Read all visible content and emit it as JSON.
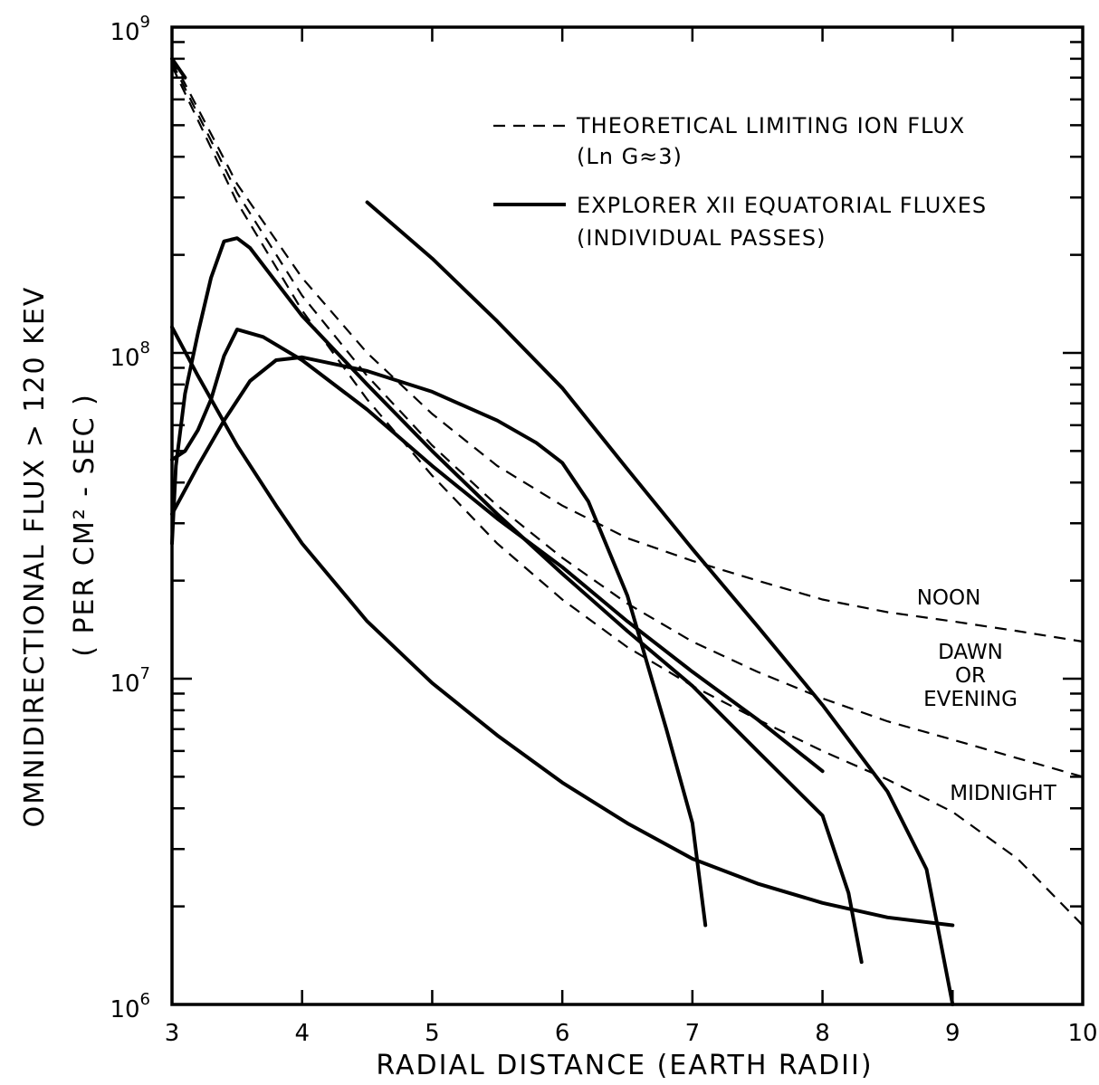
{
  "chart_data": {
    "type": "line",
    "title": "",
    "xlabel": "RADIAL DISTANCE (EARTH RADII)",
    "ylabel": "OMNIDIRECTIONAL FLUX > 120 KEV",
    "ylabel2": "( PER CM² - SEC )",
    "xlim": [
      3,
      10
    ],
    "ylim": [
      1000000,
      1000000000
    ],
    "yscale": "log",
    "grid": false,
    "legend_position": "top-right",
    "x_ticks": [
      "3",
      "4",
      "5",
      "6",
      "7",
      "8",
      "9",
      "10"
    ],
    "y_ticks": [
      {
        "value": 1000000,
        "base": "10",
        "exp": "6"
      },
      {
        "value": 10000000,
        "base": "10",
        "exp": "7"
      },
      {
        "value": 100000000,
        "base": "10",
        "exp": "8"
      },
      {
        "value": 1000000000,
        "base": "10",
        "exp": "9"
      }
    ],
    "legend": [
      {
        "style": "dashed",
        "line1": "THEORETICAL LIMITING ION FLUX",
        "line2": "(Ln G≈3)"
      },
      {
        "style": "solid",
        "line1": "EXPLORER XII EQUATORIAL FLUXES",
        "line2": "(INDIVIDUAL PASSES)"
      }
    ],
    "theoretical_series": [
      {
        "name": "NOON",
        "label_lines": [
          "NOON"
        ],
        "points": [
          [
            3.0,
            800000000
          ],
          [
            3.5,
            330000000
          ],
          [
            4.0,
            170000000
          ],
          [
            4.5,
            100000000
          ],
          [
            5.0,
            65000000
          ],
          [
            5.5,
            45000000
          ],
          [
            6.0,
            34000000
          ],
          [
            6.5,
            27000000
          ],
          [
            7.0,
            23000000
          ],
          [
            7.5,
            20000000
          ],
          [
            8.0,
            17500000
          ],
          [
            8.5,
            16000000
          ],
          [
            9.0,
            15000000
          ],
          [
            9.5,
            14000000
          ],
          [
            10.0,
            13000000
          ]
        ]
      },
      {
        "name": "DAWN OR EVENING",
        "label_lines": [
          "DAWN",
          "OR",
          "EVENING"
        ],
        "points": [
          [
            3.0,
            780000000
          ],
          [
            3.5,
            310000000
          ],
          [
            4.0,
            150000000
          ],
          [
            4.5,
            85000000
          ],
          [
            5.0,
            52000000
          ],
          [
            5.5,
            34000000
          ],
          [
            6.0,
            23500000
          ],
          [
            6.5,
            17000000
          ],
          [
            7.0,
            13000000
          ],
          [
            7.5,
            10500000
          ],
          [
            8.0,
            8700000
          ],
          [
            8.5,
            7400000
          ],
          [
            9.0,
            6500000
          ],
          [
            9.5,
            5700000
          ],
          [
            10.0,
            5000000
          ]
        ]
      },
      {
        "name": "MIDNIGHT",
        "label_lines": [
          "MIDNIGHT"
        ],
        "points": [
          [
            3.0,
            760000000
          ],
          [
            3.5,
            290000000
          ],
          [
            4.0,
            135000000
          ],
          [
            4.5,
            72000000
          ],
          [
            5.0,
            42000000
          ],
          [
            5.5,
            26000000
          ],
          [
            6.0,
            17500000
          ],
          [
            6.5,
            12500000
          ],
          [
            7.0,
            9500000
          ],
          [
            7.5,
            7500000
          ],
          [
            8.0,
            6000000
          ],
          [
            8.5,
            4900000
          ],
          [
            9.0,
            3900000
          ],
          [
            9.5,
            2800000
          ],
          [
            10.0,
            1750000
          ]
        ]
      }
    ],
    "explorer_passes": [
      {
        "points": [
          [
            3.0,
            800000000
          ],
          [
            3.1,
            700000000
          ]
        ]
      },
      {
        "points": [
          [
            3.0,
            120000000
          ],
          [
            3.2,
            85000000
          ],
          [
            3.5,
            52000000
          ],
          [
            3.8,
            34000000
          ],
          [
            4.0,
            26000000
          ],
          [
            4.5,
            15000000
          ],
          [
            5.0,
            9700000
          ],
          [
            5.5,
            6700000
          ],
          [
            6.0,
            4800000
          ],
          [
            6.5,
            3600000
          ],
          [
            7.0,
            2800000
          ],
          [
            7.5,
            2350000
          ],
          [
            8.0,
            2050000
          ],
          [
            8.5,
            1850000
          ],
          [
            9.0,
            1750000
          ]
        ]
      },
      {
        "points": [
          [
            3.0,
            26000000
          ],
          [
            3.03,
            45000000
          ],
          [
            3.1,
            75000000
          ],
          [
            3.2,
            115000000
          ],
          [
            3.3,
            170000000
          ],
          [
            3.4,
            220000000
          ],
          [
            3.5,
            225000000
          ],
          [
            3.6,
            210000000
          ],
          [
            3.8,
            165000000
          ],
          [
            4.0,
            130000000
          ],
          [
            4.5,
            80000000
          ],
          [
            5.0,
            50000000
          ],
          [
            5.5,
            32000000
          ],
          [
            6.0,
            21000000
          ],
          [
            6.5,
            14000000
          ],
          [
            7.0,
            9500000
          ],
          [
            7.5,
            6000000
          ],
          [
            8.0,
            3800000
          ],
          [
            8.2,
            2200000
          ],
          [
            8.3,
            1350000
          ]
        ]
      },
      {
        "points": [
          [
            3.0,
            47000000
          ],
          [
            3.1,
            50000000
          ],
          [
            3.2,
            58000000
          ],
          [
            3.3,
            72000000
          ],
          [
            3.4,
            98000000
          ],
          [
            3.5,
            118000000
          ],
          [
            3.7,
            112000000
          ],
          [
            4.0,
            95000000
          ],
          [
            4.5,
            67000000
          ],
          [
            5.0,
            45000000
          ],
          [
            5.5,
            31000000
          ],
          [
            6.0,
            22000000
          ],
          [
            6.5,
            15000000
          ],
          [
            7.0,
            10500000
          ],
          [
            7.5,
            7500000
          ],
          [
            8.0,
            5200000
          ]
        ]
      },
      {
        "points": [
          [
            3.0,
            32000000
          ],
          [
            3.2,
            45000000
          ],
          [
            3.4,
            62000000
          ],
          [
            3.6,
            82000000
          ],
          [
            3.8,
            95000000
          ],
          [
            4.0,
            97000000
          ],
          [
            4.5,
            88000000
          ],
          [
            5.0,
            76000000
          ],
          [
            5.5,
            62000000
          ],
          [
            5.8,
            53000000
          ],
          [
            6.0,
            46000000
          ],
          [
            6.2,
            35000000
          ],
          [
            6.5,
            18000000
          ],
          [
            6.8,
            7000000
          ],
          [
            7.0,
            3600000
          ],
          [
            7.1,
            1750000
          ]
        ]
      },
      {
        "points": [
          [
            4.5,
            290000000
          ],
          [
            5.0,
            195000000
          ],
          [
            5.5,
            125000000
          ],
          [
            6.0,
            78000000
          ],
          [
            6.5,
            44000000
          ],
          [
            7.0,
            25000000
          ],
          [
            7.5,
            14500000
          ],
          [
            8.0,
            8300000
          ],
          [
            8.5,
            4500000
          ],
          [
            8.8,
            2600000
          ],
          [
            9.0,
            1000000
          ]
        ]
      }
    ]
  }
}
